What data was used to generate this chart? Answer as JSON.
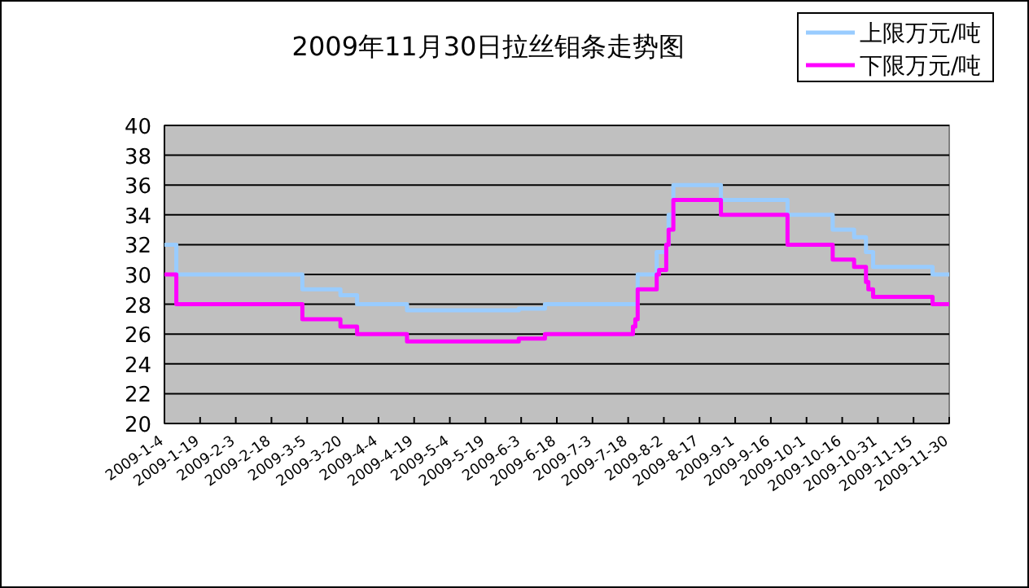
{
  "chart_data": {
    "type": "step",
    "title": "2009年11月30日拉丝钼条走势图",
    "xlim": [
      "2009-01-04",
      "2009-11-30"
    ],
    "xticks": [
      {
        "value": "2009-01-04",
        "label": "2009-1-4"
      },
      {
        "value": "2009-01-19",
        "label": "2009-1-19"
      },
      {
        "value": "2009-02-03",
        "label": "2009-2-3"
      },
      {
        "value": "2009-02-18",
        "label": "2009-2-18"
      },
      {
        "value": "2009-03-05",
        "label": "2009-3-5"
      },
      {
        "value": "2009-03-20",
        "label": "2009-3-20"
      },
      {
        "value": "2009-04-04",
        "label": "2009-4-4"
      },
      {
        "value": "2009-04-19",
        "label": "2009-4-19"
      },
      {
        "value": "2009-05-04",
        "label": "2009-5-4"
      },
      {
        "value": "2009-05-19",
        "label": "2009-5-19"
      },
      {
        "value": "2009-06-03",
        "label": "2009-6-3"
      },
      {
        "value": "2009-06-18",
        "label": "2009-6-18"
      },
      {
        "value": "2009-07-03",
        "label": "2009-7-3"
      },
      {
        "value": "2009-07-18",
        "label": "2009-7-18"
      },
      {
        "value": "2009-08-02",
        "label": "2009-8-2"
      },
      {
        "value": "2009-08-17",
        "label": "2009-8-17"
      },
      {
        "value": "2009-09-01",
        "label": "2009-9-1"
      },
      {
        "value": "2009-09-16",
        "label": "2009-9-16"
      },
      {
        "value": "2009-10-01",
        "label": "2009-10-1"
      },
      {
        "value": "2009-10-16",
        "label": "2009-10-16"
      },
      {
        "value": "2009-10-31",
        "label": "2009-10-31"
      },
      {
        "value": "2009-11-15",
        "label": "2009-11-15"
      },
      {
        "value": "2009-11-30",
        "label": "2009-11-30"
      }
    ],
    "ylim": [
      20,
      40
    ],
    "yticks": [
      20,
      22,
      24,
      26,
      28,
      30,
      32,
      34,
      36,
      38,
      40
    ],
    "grid": "y",
    "legend": "top right",
    "series": [
      {
        "name": "上限万元/吨",
        "color": "#99ccff",
        "x": [
          "2009-01-04",
          "2009-01-09",
          "2009-03-03",
          "2009-03-19",
          "2009-03-26",
          "2009-04-16",
          "2009-06-02",
          "2009-06-13",
          "2009-07-22",
          "2009-07-30",
          "2009-08-03",
          "2009-08-04",
          "2009-08-06",
          "2009-08-26",
          "2009-09-23",
          "2009-10-12",
          "2009-10-21",
          "2009-10-26",
          "2009-10-29",
          "2009-11-23",
          "2009-11-30"
        ],
        "values": [
          32,
          30,
          29,
          28.6,
          28,
          27.6,
          27.7,
          28,
          30,
          31.5,
          32,
          34,
          36,
          35,
          34,
          33,
          32.5,
          31.5,
          30.5,
          30,
          30
        ]
      },
      {
        "name": "下限万元/吨",
        "color": "#ff00ff",
        "x": [
          "2009-01-04",
          "2009-01-09",
          "2009-03-03",
          "2009-03-19",
          "2009-03-26",
          "2009-04-16",
          "2009-06-02",
          "2009-06-13",
          "2009-07-20",
          "2009-07-21",
          "2009-07-22",
          "2009-07-30",
          "2009-07-31",
          "2009-08-03",
          "2009-08-04",
          "2009-08-06",
          "2009-08-26",
          "2009-09-23",
          "2009-10-12",
          "2009-10-21",
          "2009-10-26",
          "2009-10-27",
          "2009-10-29",
          "2009-11-23",
          "2009-11-30"
        ],
        "values": [
          30,
          28,
          27,
          26.5,
          26,
          25.5,
          25.7,
          26,
          26.5,
          27,
          29,
          30,
          30.3,
          32,
          33,
          35,
          34,
          32,
          31,
          30.5,
          29.5,
          29,
          28.5,
          28,
          28
        ]
      }
    ]
  }
}
